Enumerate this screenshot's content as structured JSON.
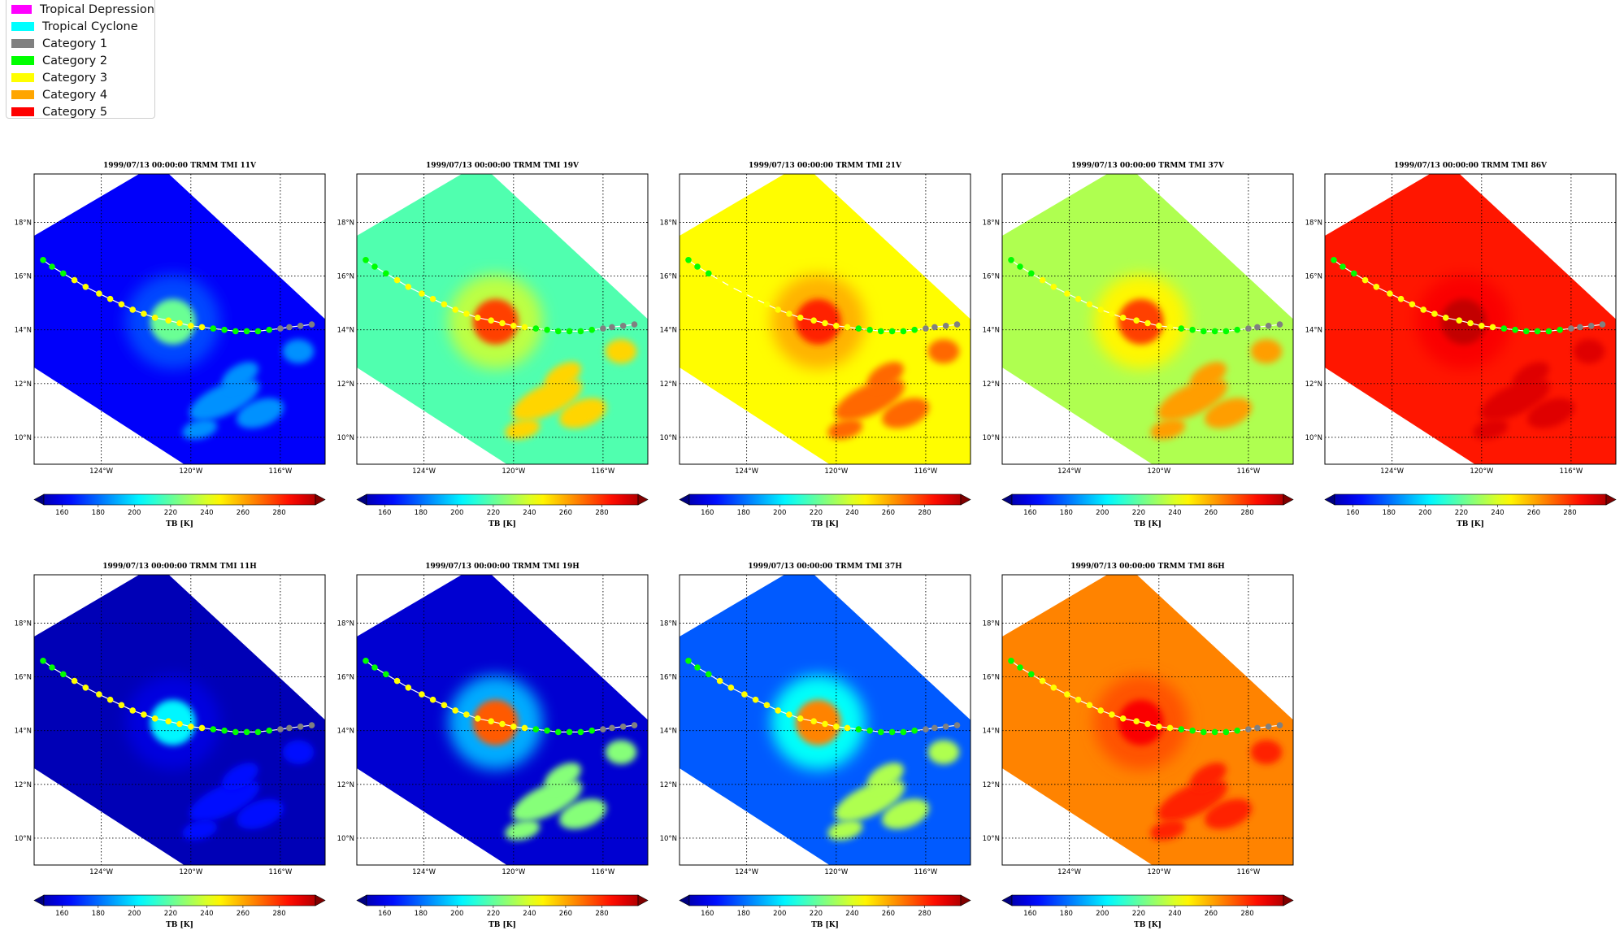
{
  "legend": {
    "items": [
      {
        "label": "Tropical Depression",
        "color": "#ff00ff"
      },
      {
        "label": "Tropical Cyclone",
        "color": "#00ffff"
      },
      {
        "label": "Category 1",
        "color": "#808080"
      },
      {
        "label": "Category 2",
        "color": "#00ff00"
      },
      {
        "label": "Category 3",
        "color": "#ffff00"
      },
      {
        "label": "Category 4",
        "color": "#ffa500"
      },
      {
        "label": "Category 5",
        "color": "#ff0000"
      }
    ]
  },
  "chart_data": {
    "type": "heatmap",
    "colorbar": {
      "label": "TB [K]",
      "ticks": [
        160,
        180,
        200,
        220,
        240,
        260,
        280
      ],
      "range": [
        150,
        300
      ],
      "extend": "both",
      "colormap": "jet"
    },
    "map": {
      "lon_range": [
        -127,
        -114
      ],
      "lat_range": [
        9,
        19.8
      ],
      "lon_ticks": [
        -124,
        -120,
        -116
      ],
      "lon_tick_labels": [
        "124°W",
        "120°W",
        "116°W"
      ],
      "lat_ticks": [
        10,
        12,
        14,
        16,
        18
      ],
      "lat_tick_labels": [
        "10°N",
        "12°N",
        "14°N",
        "16°N",
        "18°N"
      ],
      "grid": "dotted"
    },
    "track": {
      "lon": [
        -126.6,
        -126.2,
        -125.7,
        -125.2,
        -124.7,
        -124.1,
        -123.6,
        -123.1,
        -122.6,
        -122.1,
        -121.6,
        -121.0,
        -120.5,
        -120.0,
        -119.5,
        -119.0,
        -118.5,
        -118.0,
        -117.5,
        -117.0,
        -116.5,
        -116.0,
        -115.6,
        -115.1,
        -114.6
      ],
      "lat": [
        16.6,
        16.35,
        16.1,
        15.85,
        15.6,
        15.35,
        15.15,
        14.95,
        14.75,
        14.6,
        14.45,
        14.35,
        14.25,
        14.15,
        14.1,
        14.05,
        14.0,
        13.95,
        13.95,
        13.95,
        14.0,
        14.05,
        14.1,
        14.15,
        14.2
      ],
      "category": [
        "Category 2",
        "Category 2",
        "Category 2",
        "Category 3",
        "Category 3",
        "Category 3",
        "Category 3",
        "Category 3",
        "Category 3",
        "Category 3",
        "Category 3",
        "Category 3",
        "Category 3",
        "Category 3",
        "Category 3",
        "Category 2",
        "Category 2",
        "Category 2",
        "Category 2",
        "Category 2",
        "Category 2",
        "Category 1",
        "Category 1",
        "Category 1",
        "Category 1"
      ]
    },
    "panels": [
      {
        "title": "1999/07/13 00:00:00  TRMM TMI 11V",
        "base_tb": 168,
        "storm_tb": 222,
        "band_tb": 190
      },
      {
        "title": "1999/07/13 00:00:00  TRMM TMI 19V",
        "base_tb": 218,
        "storm_tb": 272,
        "band_tb": 250
      },
      {
        "title": "1999/07/13 00:00:00  TRMM TMI 21V",
        "base_tb": 244,
        "storm_tb": 276,
        "band_tb": 266
      },
      {
        "title": "1999/07/13 00:00:00  TRMM TMI 37V",
        "base_tb": 232,
        "storm_tb": 272,
        "band_tb": 258
      },
      {
        "title": "1999/07/13 00:00:00  TRMM TMI 86V",
        "base_tb": 278,
        "storm_tb": 290,
        "band_tb": 286
      },
      {
        "title": "1999/07/13 00:00:00  TRMM TMI 11H",
        "base_tb": 158,
        "storm_tb": 205,
        "band_tb": 170
      },
      {
        "title": "1999/07/13 00:00:00  TRMM TMI 19H",
        "base_tb": 162,
        "storm_tb": 268,
        "band_tb": 226
      },
      {
        "title": "1999/07/13 00:00:00  TRMM TMI 37H",
        "base_tb": 182,
        "storm_tb": 262,
        "band_tb": 232
      },
      {
        "title": "1999/07/13 00:00:00  TRMM TMI 86H",
        "base_tb": 262,
        "storm_tb": 282,
        "band_tb": 276
      }
    ]
  }
}
